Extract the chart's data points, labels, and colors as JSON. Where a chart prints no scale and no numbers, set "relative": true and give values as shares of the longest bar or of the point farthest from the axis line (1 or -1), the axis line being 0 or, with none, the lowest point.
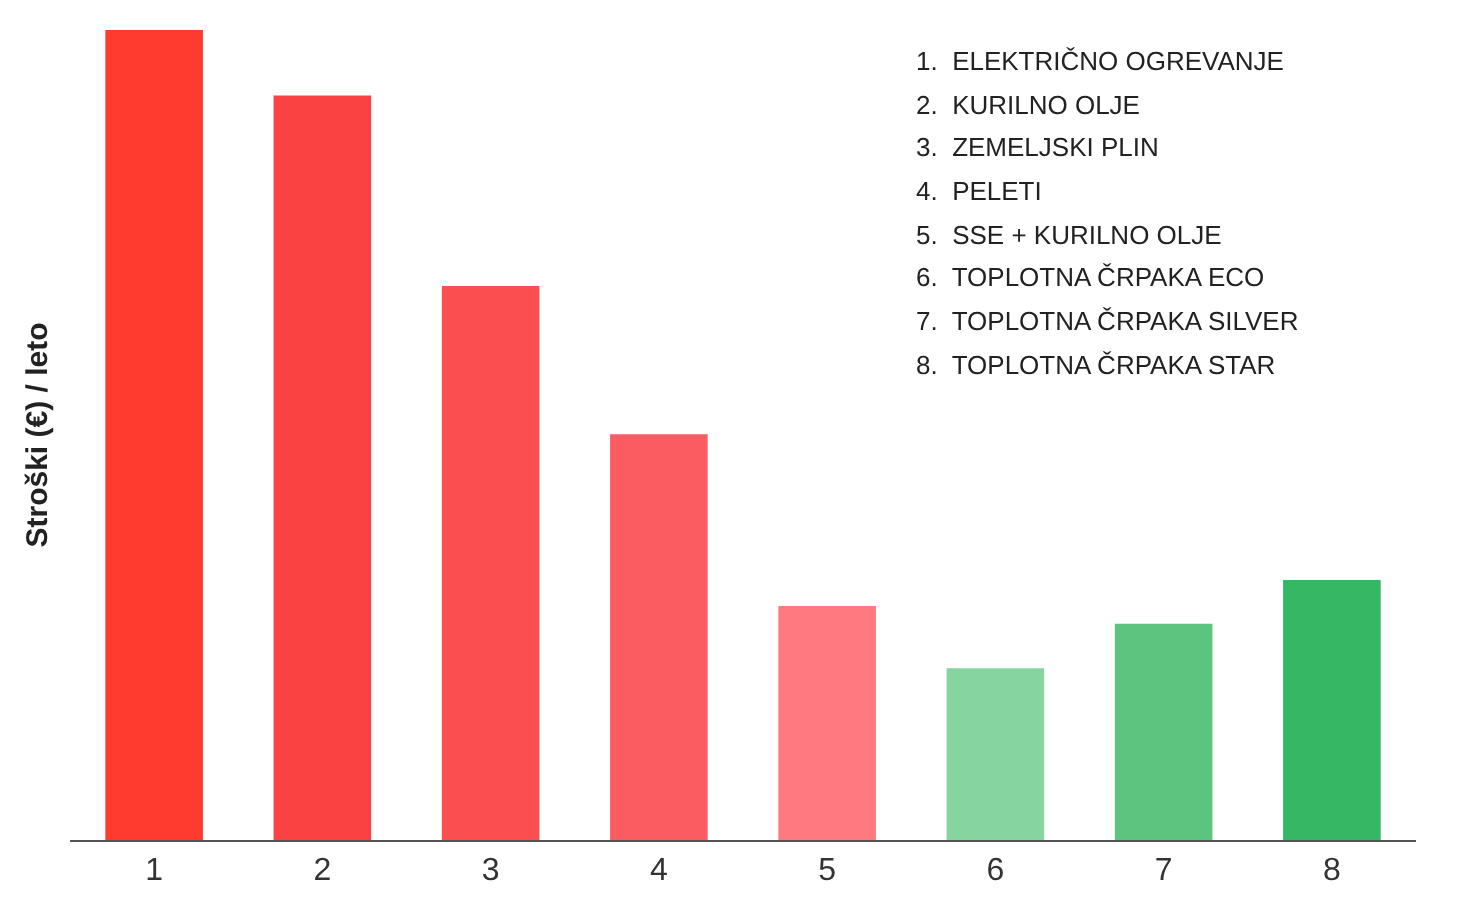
{
  "chart_data": {
    "type": "bar",
    "relative": true,
    "ylabel": "Stroški (€) / leto",
    "categories": [
      "1",
      "2",
      "3",
      "4",
      "5",
      "6",
      "7",
      "8"
    ],
    "values": [
      1,
      0.919,
      0.684,
      0.501,
      0.289,
      0.212,
      0.267,
      0.321
    ],
    "colors": [
      "#ff3a2f",
      "#fb4242",
      "#fa4e50",
      "#fb5c62",
      "#fe7a80",
      "#86d5a0",
      "#5cc47f",
      "#34b864"
    ],
    "annotations": [
      "1.  ELEKTRIČNO OGREVANJE",
      "2.  KURILNO OLJE",
      "3.  ZEMELJSKI PLIN",
      "4.  PELETI",
      "5.  SSE + KURILNO OLJE",
      "6.  TOPLOTNA ČRPAKA ECO",
      "7.  TOPLOTNA ČRPAKA SILVER",
      "8.  TOPLOTNA ČRPAKA STAR"
    ]
  }
}
